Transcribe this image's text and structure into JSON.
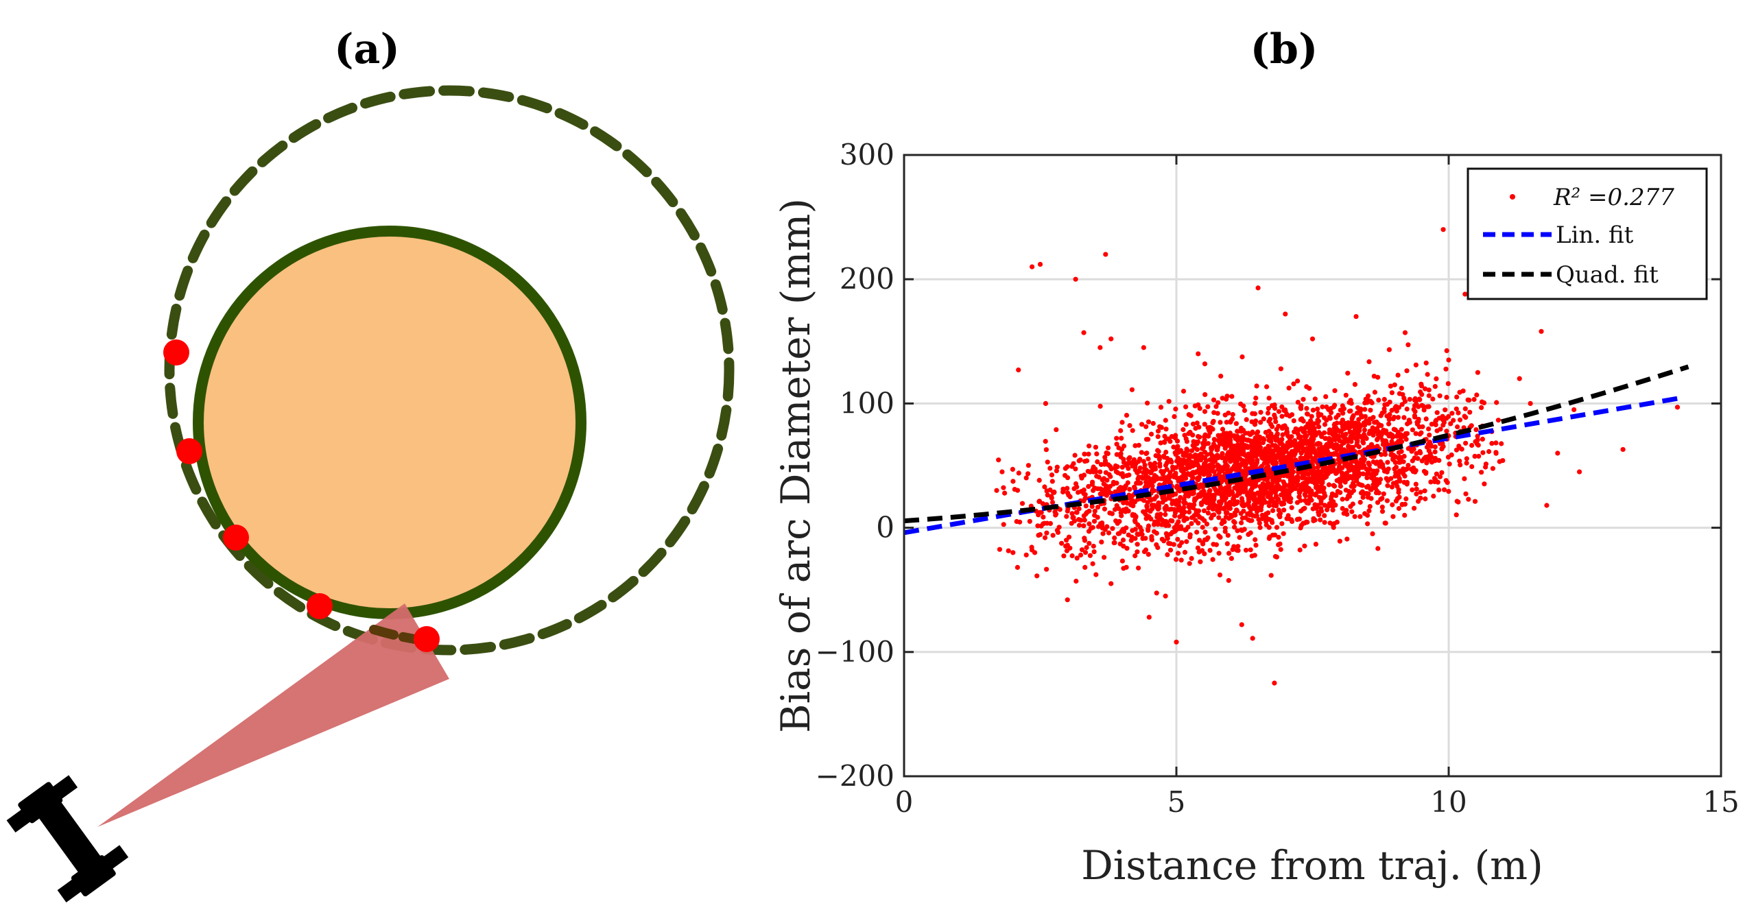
{
  "panel_a": {
    "label": "(a)",
    "colors": {
      "object_fill": "#F9C080",
      "object_edge": "#2E5300",
      "trajectory": "#3B4E12",
      "detections": "#FF0000",
      "sensor_fov": "#D46B6B",
      "robot": "#000000"
    },
    "icons": [
      "robot-icon"
    ]
  },
  "panel_b": {
    "label": "(b)",
    "chart_data": {
      "type": "scatter",
      "title": "(b)",
      "xlabel": "Distance from traj. (m)",
      "ylabel": "Bias of arc Diameter (mm)",
      "xlim": [
        0,
        15
      ],
      "ylim": [
        -200,
        300
      ],
      "xticks": [
        0,
        5,
        10,
        15
      ],
      "xtick_labels": [
        "0",
        "5",
        "10",
        "15"
      ],
      "yticks": [
        -200,
        -100,
        0,
        100,
        200,
        300
      ],
      "ytick_labels": [
        "−200",
        "−100",
        "0",
        "100",
        "200",
        "300"
      ],
      "grid": true,
      "legend": {
        "position": "top-right",
        "entries": [
          {
            "label": "R² =0.277",
            "style": "dots",
            "color": "#FF0000"
          },
          {
            "label": "Lin. fit",
            "style": "dashed",
            "color": "#0000FF"
          },
          {
            "label": "Quad. fit",
            "style": "dashed",
            "color": "#000000"
          }
        ]
      },
      "series": [
        {
          "name": "R² =0.277",
          "kind": "scatter",
          "color": "#FF0000",
          "points": [
            [
              2.35,
              210
            ],
            [
              2.5,
              212
            ],
            [
              3.15,
              200
            ],
            [
              3.7,
              220
            ],
            [
              2.1,
              127
            ],
            [
              2.6,
              100
            ],
            [
              3.3,
              157
            ],
            [
              3.6,
              145
            ],
            [
              3.8,
              152
            ],
            [
              4.4,
              145
            ],
            [
              5.4,
              140
            ],
            [
              6.5,
              193
            ],
            [
              7.0,
              172
            ],
            [
              7.5,
              152
            ],
            [
              8.3,
              170
            ],
            [
              9.2,
              157
            ],
            [
              9.9,
              240
            ],
            [
              10.3,
              188
            ],
            [
              11.7,
              158
            ],
            [
              10.0,
              135
            ],
            [
              9.4,
              131
            ],
            [
              11.3,
              120
            ],
            [
              2.4,
              -20
            ],
            [
              3.0,
              -58
            ],
            [
              3.8,
              -45
            ],
            [
              4.5,
              -72
            ],
            [
              5.0,
              -92
            ],
            [
              6.2,
              -78
            ],
            [
              6.4,
              -89
            ],
            [
              6.8,
              -125
            ],
            [
              12.4,
              45
            ],
            [
              12.0,
              60
            ],
            [
              11.8,
              18
            ],
            [
              14.2,
              97
            ],
            [
              12.3,
              95
            ],
            [
              13.2,
              63
            ],
            [
              4.8,
              -55
            ],
            [
              5.8,
              -38
            ],
            [
              2.0,
              -20
            ],
            [
              1.8,
              45
            ],
            [
              1.7,
              30
            ],
            [
              11.5,
              100
            ]
          ],
          "cloud": {
            "x_range": [
              1.7,
              11.0
            ],
            "center_x": 6.6,
            "intercept": -3,
            "slope": 7.3,
            "spread": 25,
            "count": 3200
          }
        },
        {
          "name": "Lin. fit",
          "kind": "line",
          "style": "dashed",
          "color": "#0000FF",
          "x": [
            0,
            14.2
          ],
          "y": [
            -4,
            104
          ]
        },
        {
          "name": "Quad. fit",
          "kind": "line",
          "style": "dashed",
          "color": "#000000",
          "coeffs": [
            5.5,
            3.0,
            0.39
          ],
          "x_range": [
            0,
            14.4
          ]
        }
      ]
    }
  }
}
